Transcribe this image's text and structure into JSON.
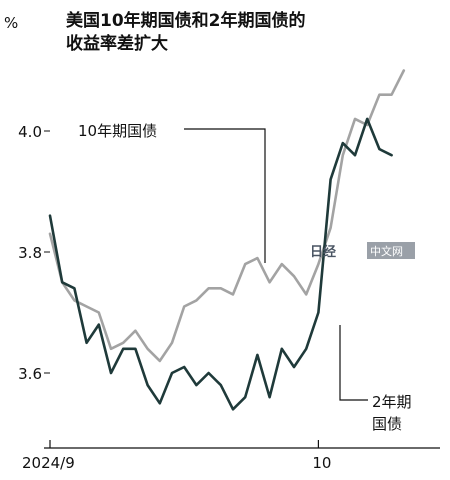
{
  "chart_data": {
    "type": "line",
    "title_lines": [
      "美国10年期国债和2年期国债的",
      "收益率差扩大"
    ],
    "unit": "%",
    "ylim": [
      3.47,
      4.2
    ],
    "y_ticks": [
      {
        "value": 3.6,
        "label": "3.6"
      },
      {
        "value": 3.8,
        "label": "3.8"
      },
      {
        "value": 4.0,
        "label": "4.0"
      }
    ],
    "x_ticks": [
      {
        "index": 0,
        "label": "2024/9"
      },
      {
        "index": 22,
        "label": "10"
      }
    ],
    "x_range": [
      0,
      31
    ],
    "series": [
      {
        "name": "10年期国债",
        "label_lines": [
          "10年期国债"
        ],
        "color": "#a3a3a3",
        "values": [
          3.83,
          3.75,
          3.72,
          3.71,
          3.7,
          3.64,
          3.65,
          3.67,
          3.64,
          3.62,
          3.65,
          3.71,
          3.72,
          3.74,
          3.74,
          3.73,
          3.78,
          3.79,
          3.75,
          3.78,
          3.76,
          3.73,
          3.78,
          3.84,
          3.96,
          4.02,
          4.01,
          4.06,
          4.06,
          4.1
        ]
      },
      {
        "name": "2年期国债",
        "label_lines": [
          "2年期",
          "国债"
        ],
        "color": "#1f3a3a",
        "values": [
          3.86,
          3.75,
          3.74,
          3.65,
          3.68,
          3.6,
          3.64,
          3.64,
          3.58,
          3.55,
          3.6,
          3.61,
          3.58,
          3.6,
          3.58,
          3.54,
          3.56,
          3.63,
          3.56,
          3.64,
          3.61,
          3.64,
          3.7,
          3.92,
          3.98,
          3.96,
          4.02,
          3.97,
          3.96
        ]
      }
    ],
    "watermark": {
      "logo": "日经",
      "text": "中文网"
    }
  }
}
